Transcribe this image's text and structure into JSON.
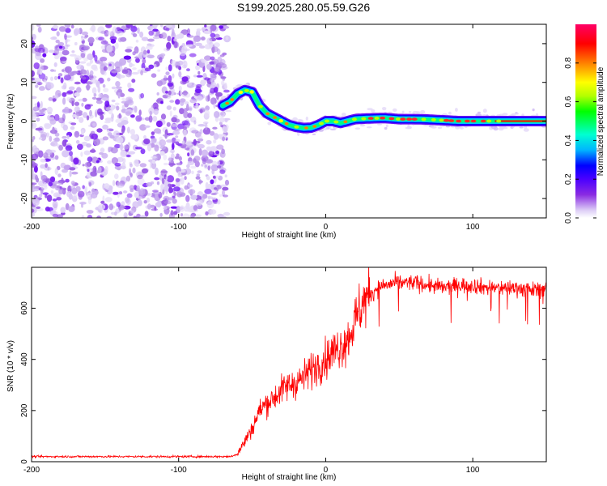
{
  "title": "S199.2025.280.05.59.G26",
  "chart_data": [
    {
      "type": "heatmap",
      "name": "spectrogram",
      "xlabel": "Height of straight line (km)",
      "ylabel": "Frequency (Hz)",
      "xlim": [
        -200,
        150
      ],
      "ylim": [
        -25,
        25
      ],
      "xticks": [
        -200,
        -100,
        0,
        100
      ],
      "yticks": [
        -20,
        -10,
        0,
        10,
        20
      ],
      "colorbar": {
        "label": "Normalized spectral amplitude",
        "range": [
          0,
          1
        ],
        "ticks": [
          0.0,
          0.2,
          0.4,
          0.6,
          0.8
        ],
        "colormap": [
          "#ffffff",
          "#dccdf6",
          "#8a2be2",
          "#4b00ff",
          "#0000ff",
          "#00b4ff",
          "#00ffd2",
          "#00ff00",
          "#b4ff00",
          "#ffff00",
          "#ff8000",
          "#ff0000",
          "#ff0066"
        ]
      },
      "noise_region_x": [
        -200,
        -67
      ],
      "signal_ridge": {
        "x": [
          -70,
          -65,
          -60,
          -55,
          -50,
          -45,
          -40,
          -35,
          -30,
          -25,
          -20,
          -15,
          -10,
          -5,
          0,
          5,
          10,
          15,
          20,
          30,
          40,
          50,
          60,
          70,
          80,
          90,
          100,
          110,
          120,
          130,
          140,
          150
        ],
        "freq": [
          4,
          5,
          7,
          8,
          7.5,
          4,
          2,
          1,
          0,
          -1,
          -1.5,
          -1.8,
          -1.7,
          -1,
          0,
          0,
          -0.5,
          0,
          0.5,
          0.7,
          0.8,
          0.5,
          0.5,
          0.4,
          0.2,
          0,
          0,
          0,
          0,
          0,
          0,
          0
        ]
      }
    },
    {
      "type": "line",
      "name": "snr",
      "xlabel": "Height of straight line (km)",
      "ylabel": "SNR (10 * v/v)",
      "xlim": [
        -200,
        150
      ],
      "ylim": [
        0,
        760
      ],
      "xticks": [
        -200,
        -100,
        0,
        100
      ],
      "yticks": [
        0,
        200,
        400,
        600
      ],
      "color": "#ff0000",
      "series": [
        {
          "name": "SNR",
          "x": [
            -200,
            -180,
            -160,
            -140,
            -120,
            -100,
            -80,
            -65,
            -60,
            -55,
            -50,
            -45,
            -40,
            -35,
            -30,
            -25,
            -20,
            -15,
            -10,
            -5,
            0,
            5,
            10,
            15,
            20,
            25,
            30,
            35,
            40,
            50,
            60,
            70,
            80,
            90,
            100,
            110,
            120,
            130,
            140,
            150
          ],
          "values": [
            20,
            20,
            20,
            20,
            20,
            20,
            20,
            20,
            30,
            80,
            130,
            200,
            230,
            250,
            280,
            300,
            310,
            330,
            360,
            380,
            400,
            430,
            450,
            480,
            550,
            620,
            650,
            680,
            690,
            700,
            700,
            690,
            680,
            690,
            690,
            680,
            680,
            680,
            670,
            680
          ]
        }
      ]
    }
  ]
}
